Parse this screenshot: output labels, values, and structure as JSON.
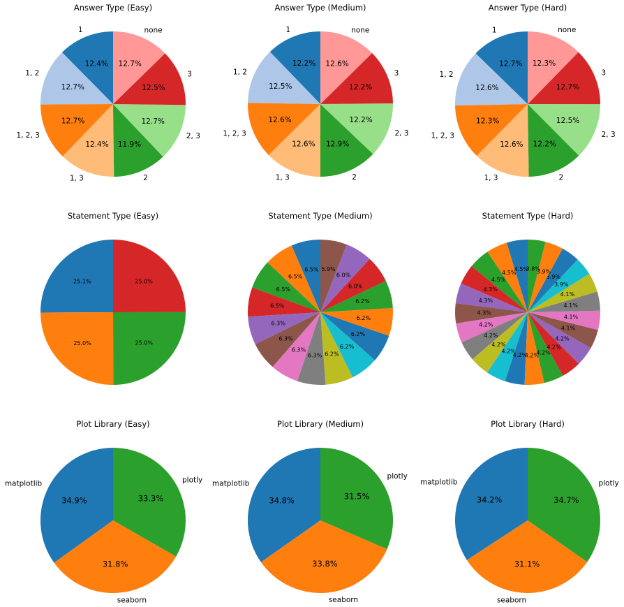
{
  "chart_data": [
    {
      "type": "pie",
      "title": "Answer Type (Easy)",
      "labels": [
        "1",
        "1, 2",
        "1, 2, 3",
        "1, 3",
        "2",
        "2, 3",
        "3",
        "none"
      ],
      "values": [
        12.4,
        12.7,
        12.7,
        12.4,
        11.9,
        12.7,
        12.5,
        12.7
      ],
      "colors": [
        "#1f77b4",
        "#aec7e8",
        "#ff7f0e",
        "#ffbb78",
        "#2ca02c",
        "#98df8a",
        "#d62728",
        "#ff9896"
      ],
      "show_labels": true,
      "start_angle": 90
    },
    {
      "type": "pie",
      "title": "Answer Type (Medium)",
      "labels": [
        "1",
        "1, 2",
        "1, 2, 3",
        "1, 3",
        "2",
        "2, 3",
        "3",
        "none"
      ],
      "values": [
        12.2,
        12.5,
        12.6,
        12.6,
        12.9,
        12.2,
        12.2,
        12.6
      ],
      "colors": [
        "#1f77b4",
        "#aec7e8",
        "#ff7f0e",
        "#ffbb78",
        "#2ca02c",
        "#98df8a",
        "#d62728",
        "#ff9896"
      ],
      "show_labels": true,
      "start_angle": 90
    },
    {
      "type": "pie",
      "title": "Answer Type (Hard)",
      "labels": [
        "1",
        "1, 2",
        "1, 2, 3",
        "1, 3",
        "2",
        "2, 3",
        "3",
        "none"
      ],
      "values": [
        12.7,
        12.6,
        12.3,
        12.6,
        12.2,
        12.5,
        12.7,
        12.3
      ],
      "colors": [
        "#1f77b4",
        "#aec7e8",
        "#ff7f0e",
        "#ffbb78",
        "#2ca02c",
        "#98df8a",
        "#d62728",
        "#ff9896"
      ],
      "show_labels": true,
      "start_angle": 90
    },
    {
      "type": "pie",
      "title": "Statement Type (Easy)",
      "values": [
        25.1,
        25.0,
        25.0,
        25.0
      ],
      "colors": [
        "#1f77b4",
        "#ff7f0e",
        "#2ca02c",
        "#d62728"
      ],
      "show_labels": false,
      "start_angle": 90
    },
    {
      "type": "pie",
      "title": "Statement Type (Medium)",
      "values": [
        6.5,
        6.5,
        6.5,
        6.5,
        6.3,
        6.3,
        6.3,
        6.3,
        6.2,
        6.2,
        6.2,
        6.2,
        6.2,
        6.0,
        6.0,
        5.9
      ],
      "colors": [
        "#1f77b4",
        "#ff7f0e",
        "#2ca02c",
        "#d62728",
        "#9467bd",
        "#8c564b",
        "#e377c2",
        "#7f7f7f",
        "#bcbd22",
        "#17becf",
        "#1f77b4",
        "#ff7f0e",
        "#2ca02c",
        "#d62728",
        "#9467bd",
        "#8c564b"
      ],
      "show_labels": false,
      "start_angle": 90
    },
    {
      "type": "pie",
      "title": "Statement Type (Hard)",
      "values": [
        4.5,
        4.5,
        4.5,
        4.3,
        4.3,
        4.3,
        4.2,
        4.2,
        4.2,
        4.2,
        4.2,
        4.2,
        4.2,
        4.2,
        4.2,
        4.1,
        4.1,
        4.1,
        4.1,
        3.9,
        3.9,
        3.9,
        3.8
      ],
      "colors": [
        "#1f77b4",
        "#ff7f0e",
        "#2ca02c",
        "#d62728",
        "#9467bd",
        "#8c564b",
        "#e377c2",
        "#7f7f7f",
        "#bcbd22",
        "#17becf",
        "#1f77b4",
        "#ff7f0e",
        "#2ca02c",
        "#d62728",
        "#9467bd",
        "#8c564b",
        "#e377c2",
        "#7f7f7f",
        "#bcbd22",
        "#17becf",
        "#1f77b4",
        "#ff7f0e",
        "#2ca02c"
      ],
      "show_labels": false,
      "start_angle": 90
    },
    {
      "type": "pie",
      "title": "Plot Library (Easy)",
      "labels": [
        "matplotlib",
        "seaborn",
        "plotly"
      ],
      "values": [
        34.9,
        31.8,
        33.3
      ],
      "colors": [
        "#1f77b4",
        "#ff7f0e",
        "#2ca02c"
      ],
      "show_labels": true,
      "start_angle": 90
    },
    {
      "type": "pie",
      "title": "Plot Library (Medium)",
      "labels": [
        "matplotlib",
        "seaborn",
        "plotly"
      ],
      "values": [
        34.8,
        33.8,
        31.5
      ],
      "colors": [
        "#1f77b4",
        "#ff7f0e",
        "#2ca02c"
      ],
      "show_labels": true,
      "start_angle": 90
    },
    {
      "type": "pie",
      "title": "Plot Library (Hard)",
      "labels": [
        "matplotlib",
        "seaborn",
        "plotly"
      ],
      "values": [
        34.2,
        31.1,
        34.7
      ],
      "colors": [
        "#1f77b4",
        "#ff7f0e",
        "#2ca02c"
      ],
      "show_labels": true,
      "start_angle": 90
    }
  ]
}
